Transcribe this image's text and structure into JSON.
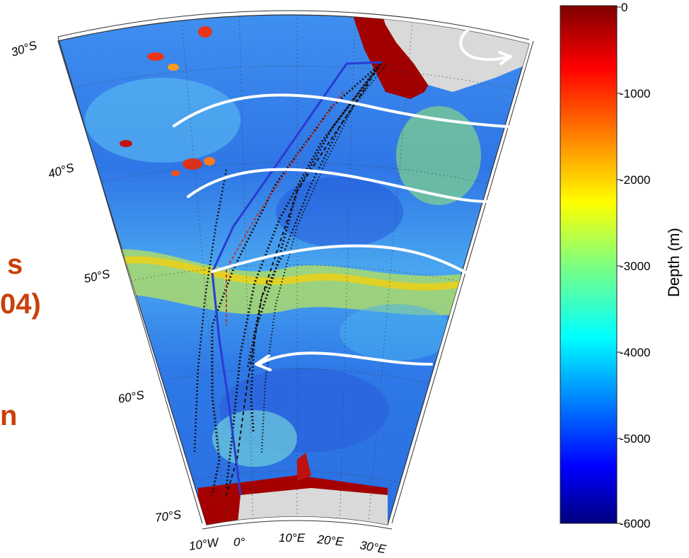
{
  "side_text": [
    "s",
    "04)",
    "n"
  ],
  "map": {
    "lat_labels": [
      "30°S",
      "40°S",
      "50°S",
      "60°S",
      "70°S"
    ],
    "lon_labels": [
      "10°W",
      "0°",
      "10°E",
      "20°E",
      "30°E"
    ]
  },
  "colorbar": {
    "title": "Depth (m)",
    "ticks": [
      "0",
      "-1000",
      "-2000",
      "-3000",
      "-4000",
      "-5000",
      "-6000"
    ],
    "range": [
      -6000,
      0
    ],
    "colormap": [
      "#00007f",
      "#0000ff",
      "#007fff",
      "#00ffff",
      "#7fff7f",
      "#ffff00",
      "#ff7f00",
      "#ff0000",
      "#7f0000"
    ]
  },
  "colors": {
    "land": "#d9d9d9",
    "flow_arrows": "#ffffff",
    "track_black": "#111111",
    "track_blue": "#2a3bd1",
    "track_red": "#c03030",
    "side_text": "#c8410a"
  }
}
